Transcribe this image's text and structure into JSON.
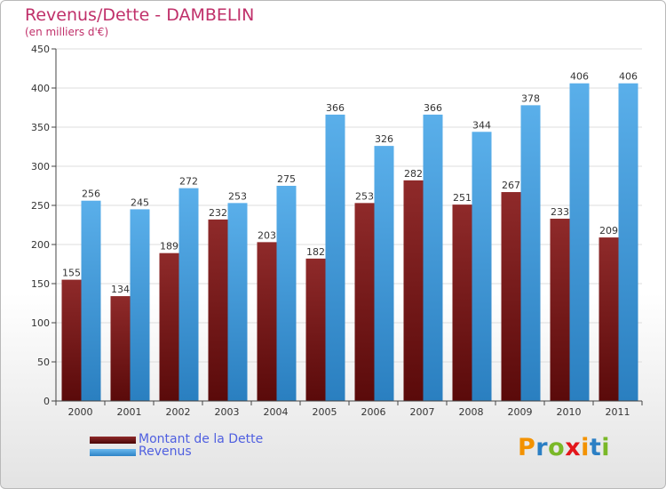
{
  "title": "Revenus/Dette - DAMBELIN",
  "subtitle": "(en milliers d'€)",
  "brand": {
    "letters": [
      "P",
      "r",
      "o",
      "x",
      "i",
      "t",
      "i"
    ],
    "colors": [
      "#f39200",
      "#2b7fc4",
      "#7ab828",
      "#e3161b",
      "#f39200",
      "#2b7fc4",
      "#7ab828"
    ]
  },
  "chart_data": {
    "type": "bar",
    "title": "Revenus/Dette - DAMBELIN",
    "subtitle": "(en milliers d'€)",
    "categories": [
      "2000",
      "2001",
      "2002",
      "2003",
      "2004",
      "2005",
      "2006",
      "2007",
      "2008",
      "2009",
      "2010",
      "2011"
    ],
    "ylim": [
      0,
      450
    ],
    "yticks": [
      0,
      50,
      100,
      150,
      200,
      250,
      300,
      350,
      400,
      450
    ],
    "grid": true,
    "legend_position": "bottom-left",
    "series": [
      {
        "name": "Montant de la Dette",
        "color": "#7b1f1f",
        "values": [
          155,
          134,
          189,
          232,
          203,
          182,
          253,
          282,
          251,
          267,
          233,
          209
        ]
      },
      {
        "name": "Revenus",
        "color": "#4aa3e3",
        "values": [
          256,
          245,
          272,
          253,
          275,
          366,
          326,
          366,
          344,
          378,
          406,
          406
        ]
      }
    ]
  }
}
